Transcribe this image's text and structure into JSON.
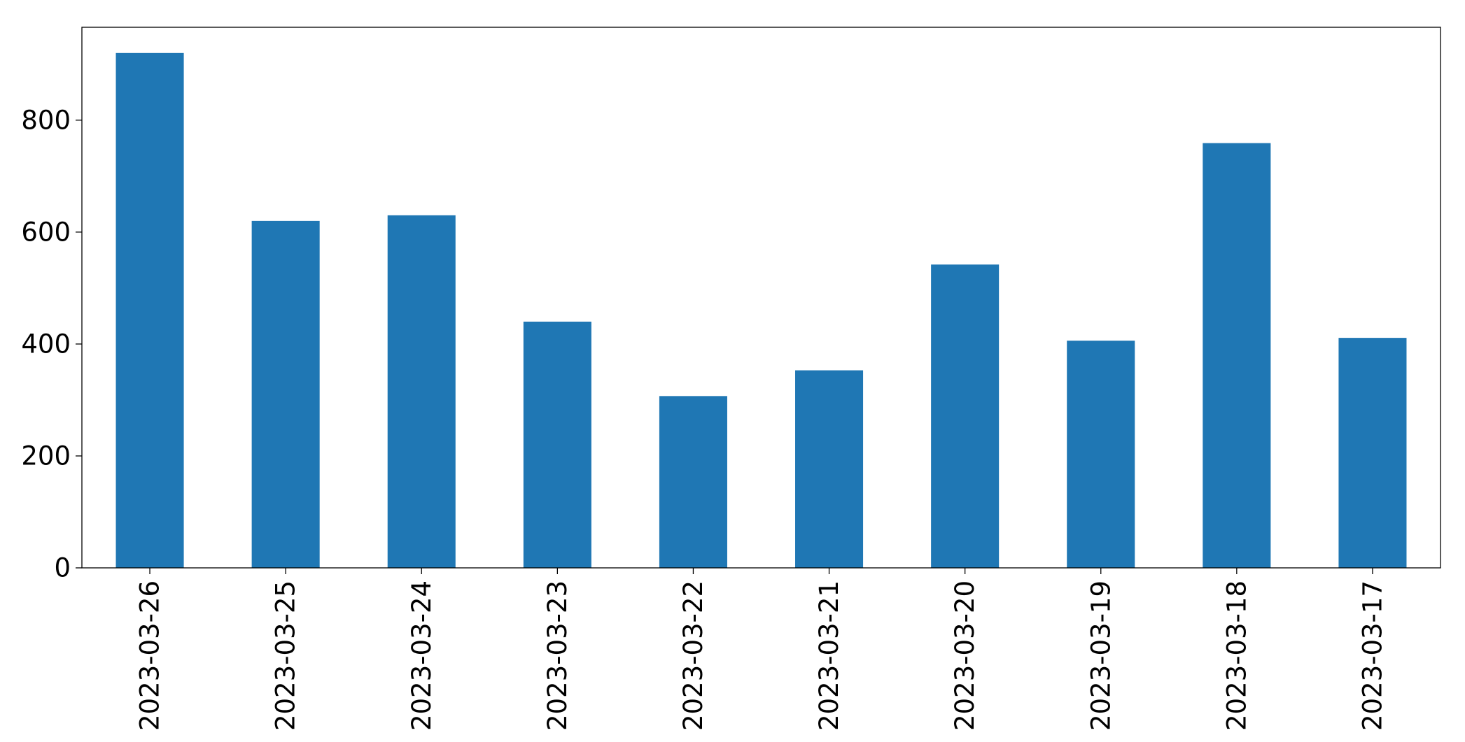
{
  "chart_data": {
    "type": "bar",
    "title": "",
    "xlabel": "",
    "ylabel": "",
    "categories": [
      "2023-03-26",
      "2023-03-25",
      "2023-03-24",
      "2023-03-23",
      "2023-03-22",
      "2023-03-21",
      "2023-03-20",
      "2023-03-19",
      "2023-03-18",
      "2023-03-17"
    ],
    "values": [
      920,
      620,
      630,
      440,
      307,
      353,
      542,
      406,
      759,
      411
    ],
    "ylim": [
      0,
      966
    ],
    "yticks": [
      0,
      200,
      400,
      600,
      800
    ],
    "ytick_labels": [
      "0",
      "200",
      "400",
      "600",
      "800"
    ],
    "bar_color": "#1f77b4",
    "grid": false,
    "legend": "none"
  }
}
